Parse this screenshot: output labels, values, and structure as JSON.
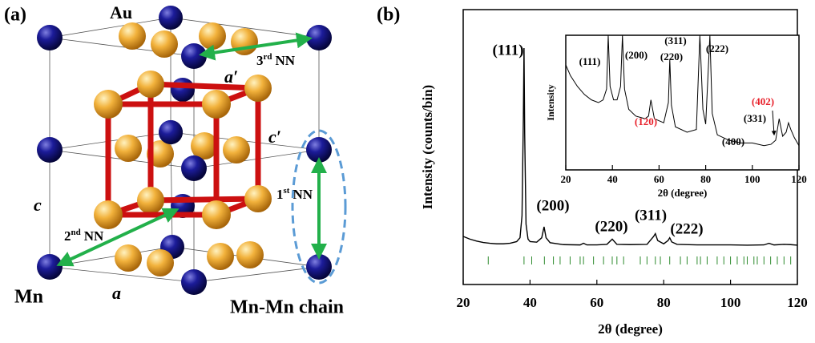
{
  "panel_a": {
    "tag": "(a)",
    "labels": {
      "au": "Au",
      "a_prime": "a′",
      "c_prime": "c′",
      "c": "c",
      "a": "a",
      "mn": "Mn",
      "chain": "Mn-Mn chain",
      "nn3": {
        "number": "3",
        "suffix": "rd",
        "text": "NN"
      },
      "nn1": {
        "number": "1",
        "suffix": "st",
        "text": "NN"
      },
      "nn2": {
        "number": "2",
        "suffix": "nd",
        "text": "NN"
      }
    }
  },
  "panel_b": {
    "tag": "(b)"
  },
  "chart_data": [
    {
      "type": "line",
      "x_label": "2θ (degree)",
      "y_label": "Intensity (counts/bin)",
      "xlim": [
        20,
        120
      ],
      "xticks": [
        20,
        40,
        60,
        80,
        100,
        120
      ],
      "ylim": [
        0,
        100
      ],
      "color": "#000000",
      "x": [
        20,
        22,
        24,
        26,
        28,
        30,
        32,
        34,
        36,
        37,
        37.6,
        38.0,
        38.2,
        38.4,
        38.8,
        39.4,
        40,
        42,
        43.5,
        44.2,
        44.8,
        46,
        50,
        55,
        56,
        57,
        60,
        63,
        64.6,
        66,
        70,
        75,
        77,
        77.5,
        78.2,
        80,
        81.3,
        81.8,
        82.4,
        84,
        90,
        95,
        100,
        105,
        110,
        111.5,
        113,
        116,
        118,
        120
      ],
      "values": [
        17.5,
        16.5,
        15.8,
        15.3,
        15,
        14.8,
        14.8,
        15,
        15.6,
        17,
        25,
        60,
        86,
        55,
        22,
        16.5,
        15.6,
        15.4,
        17,
        21,
        17,
        15.2,
        14.5,
        14.4,
        15,
        14.4,
        14.4,
        14.6,
        16.5,
        14.6,
        14.5,
        14.6,
        17.5,
        18.5,
        16,
        14.8,
        16,
        17,
        15.5,
        14.6,
        14.4,
        14.4,
        14.4,
        14.3,
        14.4,
        15,
        14.4,
        14.6,
        14.5,
        14.3
      ],
      "reference_positions": [
        27.5,
        38.2,
        40.5,
        44.3,
        47,
        49,
        52,
        55,
        56,
        59,
        62,
        64.6,
        66,
        68,
        73,
        75,
        77.5,
        79,
        81.8,
        85,
        87,
        90,
        91,
        93,
        96,
        98,
        100,
        102,
        104,
        105,
        107,
        108,
        110,
        112,
        114,
        116,
        118
      ],
      "reference_color": "#2e8b2e",
      "annotations": [
        {
          "text": "(111)",
          "color": "#000000"
        },
        {
          "text": "(200)",
          "color": "#000000"
        },
        {
          "text": "(220)",
          "color": "#000000"
        },
        {
          "text": "(311)",
          "color": "#000000"
        },
        {
          "text": "(222)",
          "color": "#000000"
        }
      ]
    },
    {
      "type": "line",
      "x_label": "2θ (degree)",
      "y_label": "Intensity",
      "xlim": [
        20,
        120
      ],
      "xticks": [
        20,
        40,
        60,
        80,
        100,
        120
      ],
      "ylim": [
        0,
        100
      ],
      "color": "#000000",
      "x": [
        20,
        22,
        25,
        28,
        31,
        34,
        36,
        37.5,
        38.2,
        39,
        40.5,
        42,
        43.5,
        44.3,
        45.2,
        47,
        50,
        54,
        55.5,
        56.5,
        58,
        62,
        64,
        64.6,
        65.3,
        67,
        72,
        76,
        77.5,
        78.8,
        80,
        81.8,
        82.8,
        85,
        90,
        95,
        100,
        105,
        108,
        110,
        111.5,
        113,
        114.5,
        115.5,
        116.5,
        118,
        120
      ],
      "values": [
        78,
        70,
        62,
        56,
        52,
        50,
        52,
        60,
        100,
        62,
        52,
        52,
        62,
        100,
        60,
        45,
        40,
        38,
        40,
        52,
        38,
        35,
        50,
        82,
        48,
        32,
        28,
        30,
        100,
        45,
        34,
        100,
        42,
        26,
        22,
        20,
        20,
        18,
        19,
        22,
        38,
        25,
        28,
        35,
        30,
        24,
        18
      ],
      "annotations": [
        {
          "text": "(111)",
          "color": "#000000"
        },
        {
          "text": "(200)",
          "color": "#000000"
        },
        {
          "text": "(311)",
          "color": "#000000"
        },
        {
          "text": "(220)",
          "color": "#000000"
        },
        {
          "text": "(222)",
          "color": "#000000"
        },
        {
          "text": "(120)",
          "color": "#e8202a"
        },
        {
          "text": "(400)",
          "color": "#000000"
        },
        {
          "text": "(331)",
          "color": "#000000"
        },
        {
          "text": "(402)",
          "color": "#e8202a"
        }
      ]
    }
  ]
}
